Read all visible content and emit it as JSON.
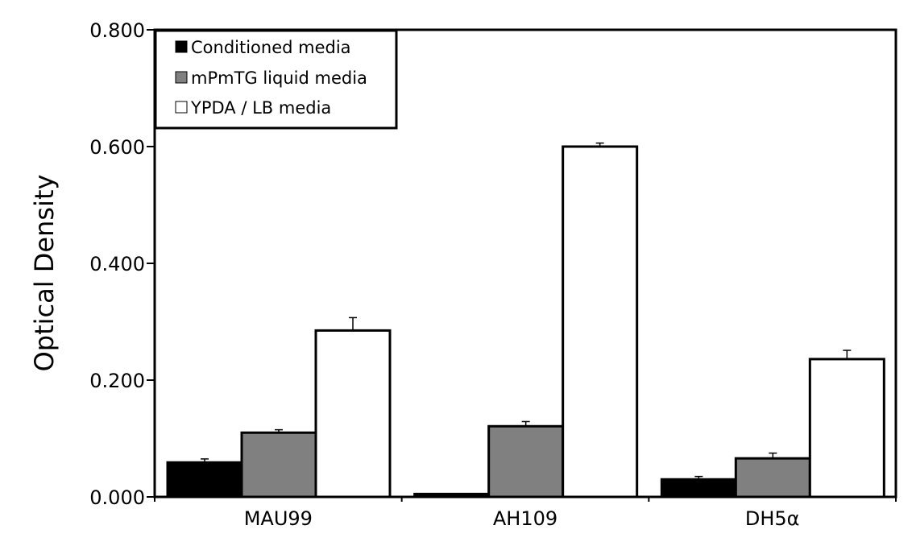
{
  "chart_data": {
    "type": "bar",
    "title": "",
    "xlabel": "",
    "ylabel": "Optical Density",
    "ylim": [
      0,
      0.8
    ],
    "yticks": [
      "0.000",
      "0.200",
      "0.400",
      "0.600",
      "0.800"
    ],
    "categories": [
      "MAU99",
      "AH109",
      "DH5α"
    ],
    "legend_position": "top-left",
    "grid": false,
    "series": [
      {
        "name": "Conditioned media",
        "color": "#000000",
        "values": [
          0.059,
          0.005,
          0.03
        ],
        "errors": [
          0.006,
          0.0,
          0.005
        ]
      },
      {
        "name": "mPmTG liquid media",
        "color": "#808080",
        "values": [
          0.11,
          0.121,
          0.066
        ],
        "errors": [
          0.005,
          0.008,
          0.009
        ]
      },
      {
        "name": "YPDA / LB media",
        "color": "#ffffff",
        "values": [
          0.285,
          0.6,
          0.236
        ],
        "errors": [
          0.022,
          0.006,
          0.015
        ]
      }
    ]
  }
}
